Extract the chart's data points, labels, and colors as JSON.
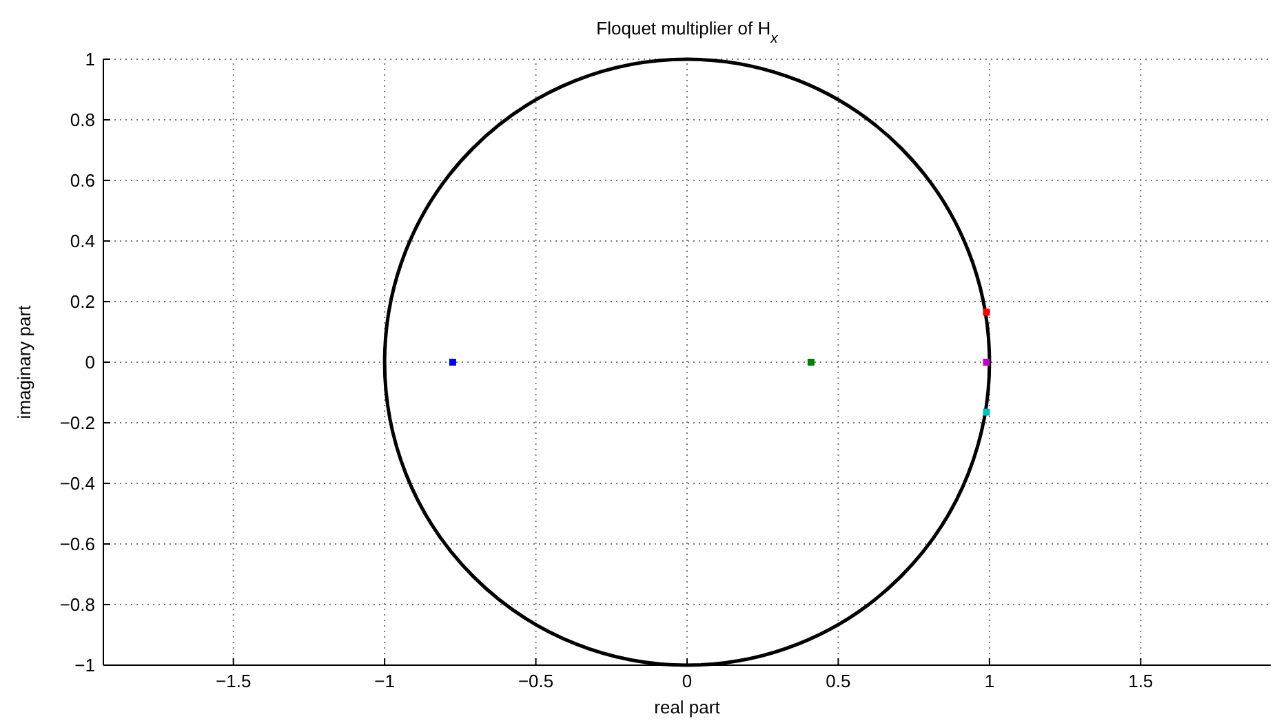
{
  "chart_data": {
    "type": "scatter",
    "title": "Floquet multiplier of H$_{x}$",
    "xlabel": "real part",
    "ylabel": "imaginary part",
    "xlim": [
      -1.93,
      1.93
    ],
    "ylim": [
      -1,
      1
    ],
    "xticks": [
      -1.5,
      -1,
      -0.5,
      0,
      0.5,
      1,
      1.5
    ],
    "yticks": [
      -1,
      -0.8,
      -0.6,
      -0.4,
      -0.2,
      0,
      0.2,
      0.4,
      0.6,
      0.8,
      1
    ],
    "grid": true,
    "marker": "square",
    "series": [
      {
        "color": "#0000ff",
        "x": [
          -0.775
        ],
        "values": [
          0
        ]
      },
      {
        "color": "#008000",
        "x": [
          0.41
        ],
        "values": [
          0
        ]
      },
      {
        "color": "#ff0000",
        "x": [
          0.99
        ],
        "values": [
          0.165
        ]
      },
      {
        "color": "#00bfbf",
        "x": [
          0.99
        ],
        "values": [
          -0.165
        ]
      },
      {
        "color": "#bf00bf",
        "x": [
          0.99
        ],
        "values": [
          0
        ]
      }
    ]
  }
}
